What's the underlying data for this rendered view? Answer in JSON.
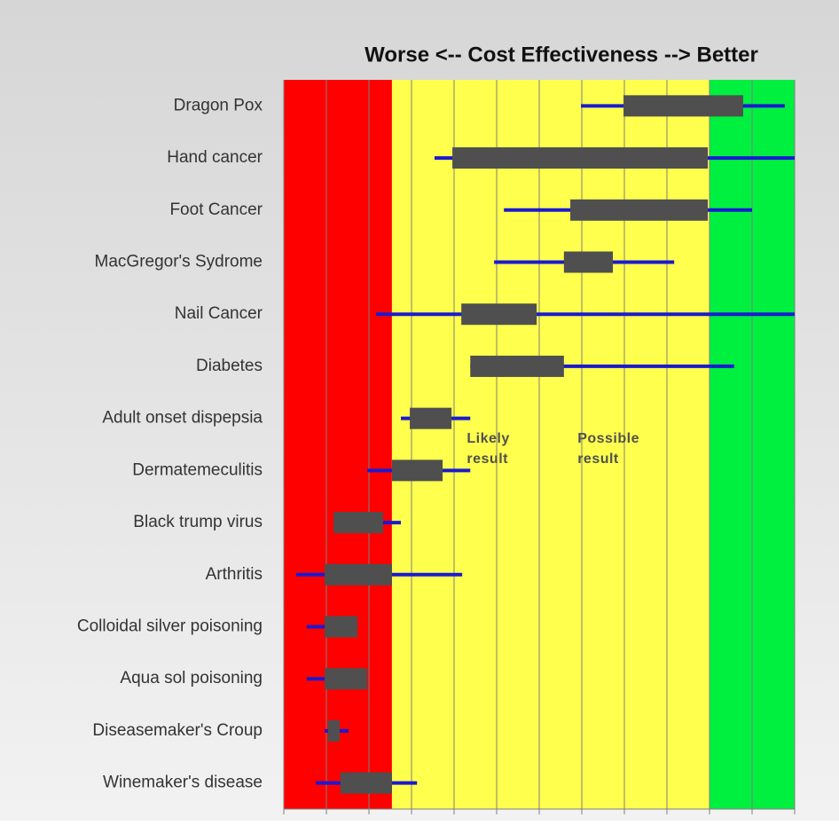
{
  "chart_data": {
    "type": "range",
    "title": "Worse <-- Cost Effectiveness  --> Better",
    "categories": [
      "Dragon Pox",
      "Hand  cancer",
      "Foot Cancer",
      "MacGregor's Sydrome",
      "Nail Cancer",
      "Diabetes",
      "Adult onset dispepsia",
      "Dermatemeculitis",
      "Black trump virus",
      "Arthritis",
      "Colloidal silver poisoning",
      "Aqua sol poisoning",
      "Diseasemaker's Croup",
      "Winemaker's disease"
    ],
    "whisker_low": [
      6.98,
      3.54,
      5.17,
      4.94,
      2.17,
      4.38,
      2.75,
      1.96,
      1.17,
      0.29,
      0.54,
      0.54,
      0.96,
      0.75
    ],
    "whisker_high": [
      11.77,
      12,
      11,
      9.17,
      12,
      10.58,
      4.38,
      4.38,
      2.75,
      4.19,
      1.73,
      1.96,
      1.52,
      3.13
    ],
    "box_low": [
      7.98,
      3.96,
      6.73,
      6.58,
      4.17,
      4.38,
      2.96,
      2.54,
      1.17,
      0.96,
      0.96,
      0.96,
      1.04,
      1.33
    ],
    "box_high": [
      10.79,
      9.96,
      9.96,
      7.73,
      5.94,
      6.58,
      3.94,
      3.73,
      2.33,
      2.54,
      1.73,
      1.96,
      1.31,
      2.54
    ],
    "whisker_color": "#1a1ad0",
    "box_color": "#4f4f4f",
    "zones": [
      {
        "range": [
          0,
          2.54
        ],
        "color": "#ff0000"
      },
      {
        "range": [
          2.54,
          10
        ],
        "color": "#ffff4d"
      },
      {
        "range": [
          10,
          12
        ],
        "color": "#00f040"
      }
    ],
    "annotations": [
      {
        "text": [
          "Likely",
          "result"
        ],
        "x": 4.3
      },
      {
        "text": [
          "Possible",
          "result"
        ],
        "x": 6.9
      }
    ],
    "xlim": [
      0,
      12
    ],
    "xticks": [
      0,
      1,
      2,
      3,
      4,
      5,
      6,
      7,
      8,
      9,
      10,
      11,
      12
    ],
    "grid": true
  }
}
